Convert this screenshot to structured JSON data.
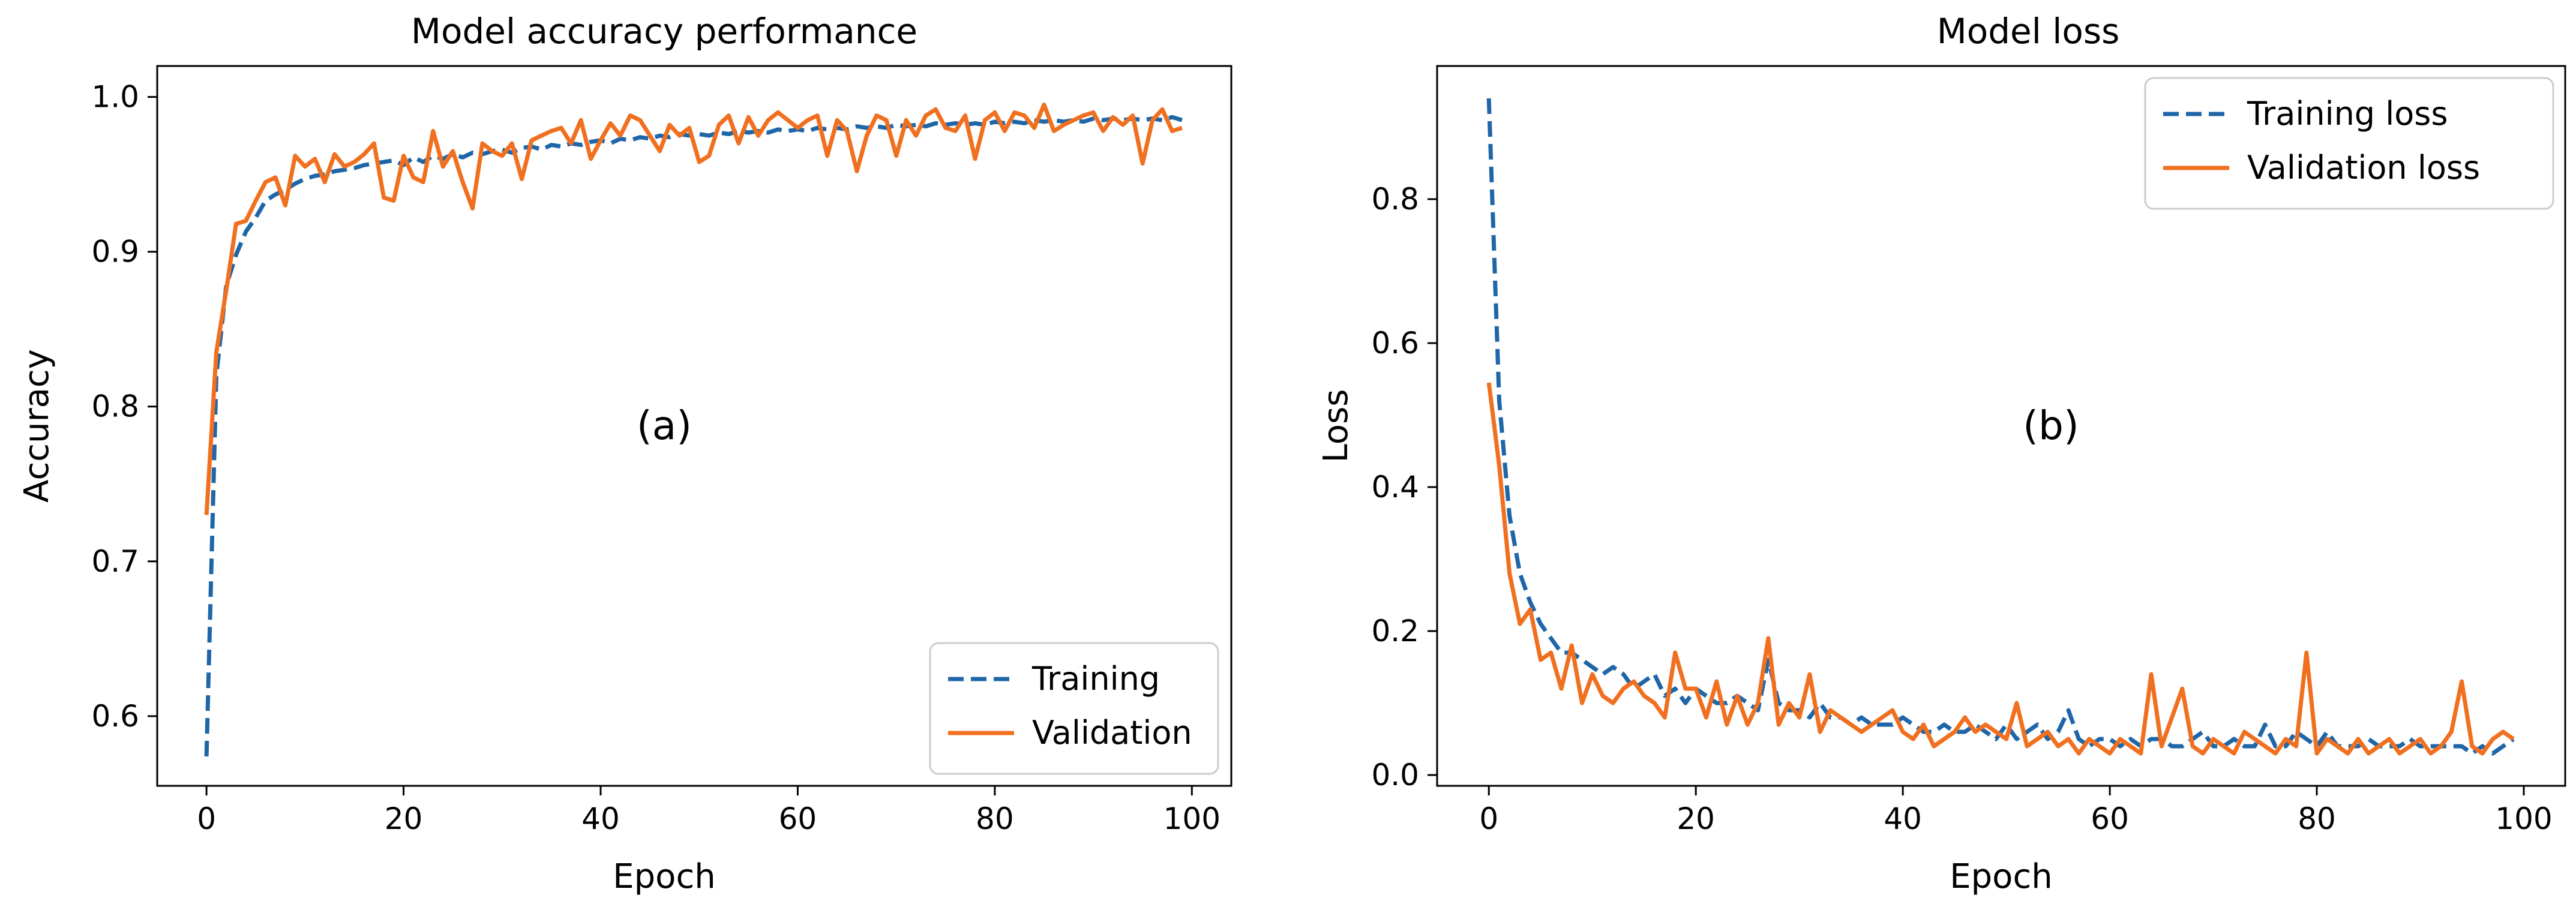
{
  "chart_data": [
    {
      "type": "line",
      "title": "Model accuracy performance",
      "xlabel": "Epoch",
      "ylabel": "Accuracy",
      "xlim": [
        -5,
        104
      ],
      "ylim": [
        0.555,
        1.02
      ],
      "xticks": [
        0,
        20,
        40,
        60,
        80,
        100
      ],
      "xtick_labels": [
        "0",
        "20",
        "40",
        "60",
        "80",
        "100"
      ],
      "yticks": [
        0.6,
        0.7,
        0.8,
        0.9,
        1.0
      ],
      "ytick_labels": [
        "0.6",
        "0.7",
        "0.8",
        "0.9",
        "1.0"
      ],
      "annotation": "(a)",
      "legend_position": "lower-right",
      "grid": false,
      "series": [
        {
          "name": "Training",
          "style": "dashed",
          "color": "#1f66a8",
          "x": [
            0,
            1,
            2,
            3,
            4,
            5,
            6,
            7,
            8,
            9,
            10,
            11,
            12,
            13,
            14,
            15,
            16,
            17,
            18,
            19,
            20,
            21,
            22,
            23,
            24,
            25,
            26,
            27,
            28,
            29,
            30,
            31,
            32,
            33,
            34,
            35,
            36,
            37,
            38,
            39,
            40,
            41,
            42,
            43,
            44,
            45,
            46,
            47,
            48,
            49,
            50,
            51,
            52,
            53,
            54,
            55,
            56,
            57,
            58,
            59,
            60,
            61,
            62,
            63,
            64,
            65,
            66,
            67,
            68,
            69,
            70,
            71,
            72,
            73,
            74,
            75,
            76,
            77,
            78,
            79,
            80,
            81,
            82,
            83,
            84,
            85,
            86,
            87,
            88,
            89,
            90,
            91,
            92,
            93,
            94,
            95,
            96,
            97,
            98,
            99
          ],
          "values": [
            0.574,
            0.82,
            0.878,
            0.898,
            0.913,
            0.922,
            0.933,
            0.937,
            0.94,
            0.944,
            0.947,
            0.949,
            0.95,
            0.952,
            0.953,
            0.954,
            0.956,
            0.957,
            0.958,
            0.959,
            0.956,
            0.961,
            0.958,
            0.962,
            0.96,
            0.963,
            0.961,
            0.964,
            0.963,
            0.965,
            0.966,
            0.964,
            0.967,
            0.968,
            0.966,
            0.969,
            0.968,
            0.97,
            0.969,
            0.971,
            0.972,
            0.97,
            0.973,
            0.972,
            0.974,
            0.973,
            0.975,
            0.974,
            0.976,
            0.975,
            0.976,
            0.975,
            0.977,
            0.976,
            0.978,
            0.977,
            0.978,
            0.977,
            0.979,
            0.978,
            0.979,
            0.978,
            0.98,
            0.979,
            0.98,
            0.979,
            0.981,
            0.98,
            0.981,
            0.98,
            0.982,
            0.981,
            0.982,
            0.981,
            0.983,
            0.982,
            0.983,
            0.982,
            0.983,
            0.982,
            0.984,
            0.983,
            0.984,
            0.983,
            0.985,
            0.984,
            0.985,
            0.984,
            0.985,
            0.984,
            0.986,
            0.985,
            0.986,
            0.985,
            0.986,
            0.985,
            0.986,
            0.985,
            0.987,
            0.985
          ]
        },
        {
          "name": "Validation",
          "style": "solid",
          "color": "#f07020",
          "x": [
            0,
            1,
            2,
            3,
            4,
            5,
            6,
            7,
            8,
            9,
            10,
            11,
            12,
            13,
            14,
            15,
            16,
            17,
            18,
            19,
            20,
            21,
            22,
            23,
            24,
            25,
            26,
            27,
            28,
            29,
            30,
            31,
            32,
            33,
            34,
            35,
            36,
            37,
            38,
            39,
            40,
            41,
            42,
            43,
            44,
            45,
            46,
            47,
            48,
            49,
            50,
            51,
            52,
            53,
            54,
            55,
            56,
            57,
            58,
            59,
            60,
            61,
            62,
            63,
            64,
            65,
            66,
            67,
            68,
            69,
            70,
            71,
            72,
            73,
            74,
            75,
            76,
            77,
            78,
            79,
            80,
            81,
            82,
            83,
            84,
            85,
            86,
            87,
            88,
            89,
            90,
            91,
            92,
            93,
            94,
            95,
            96,
            97,
            98,
            99
          ],
          "values": [
            0.73,
            0.835,
            0.875,
            0.918,
            0.92,
            0.933,
            0.945,
            0.948,
            0.93,
            0.962,
            0.955,
            0.96,
            0.945,
            0.963,
            0.955,
            0.958,
            0.963,
            0.97,
            0.935,
            0.933,
            0.962,
            0.948,
            0.945,
            0.978,
            0.955,
            0.965,
            0.945,
            0.928,
            0.97,
            0.965,
            0.962,
            0.97,
            0.947,
            0.972,
            0.975,
            0.978,
            0.98,
            0.97,
            0.985,
            0.96,
            0.972,
            0.983,
            0.975,
            0.988,
            0.985,
            0.975,
            0.965,
            0.982,
            0.975,
            0.98,
            0.958,
            0.962,
            0.982,
            0.988,
            0.97,
            0.987,
            0.975,
            0.985,
            0.99,
            0.985,
            0.98,
            0.985,
            0.988,
            0.962,
            0.985,
            0.978,
            0.952,
            0.975,
            0.988,
            0.985,
            0.962,
            0.985,
            0.975,
            0.988,
            0.992,
            0.98,
            0.978,
            0.988,
            0.96,
            0.985,
            0.99,
            0.978,
            0.99,
            0.988,
            0.98,
            0.995,
            0.978,
            0.982,
            0.985,
            0.988,
            0.99,
            0.978,
            0.987,
            0.982,
            0.988,
            0.957,
            0.985,
            0.992,
            0.978,
            0.98
          ]
        }
      ]
    },
    {
      "type": "line",
      "title": "Model loss",
      "xlabel": "Epoch",
      "ylabel": "Loss",
      "xlim": [
        -5,
        104
      ],
      "ylim": [
        -0.015,
        0.985
      ],
      "xticks": [
        0,
        20,
        40,
        60,
        80,
        100
      ],
      "xtick_labels": [
        "0",
        "20",
        "40",
        "60",
        "80",
        "100"
      ],
      "yticks": [
        0.0,
        0.2,
        0.4,
        0.6,
        0.8
      ],
      "ytick_labels": [
        "0.0",
        "0.2",
        "0.4",
        "0.6",
        "0.8"
      ],
      "annotation": "(b)",
      "legend_position": "upper-right",
      "grid": false,
      "series": [
        {
          "name": "Training loss",
          "style": "dashed",
          "color": "#1f66a8",
          "x": [
            0,
            1,
            2,
            3,
            4,
            5,
            6,
            7,
            8,
            9,
            10,
            11,
            12,
            13,
            14,
            15,
            16,
            17,
            18,
            19,
            20,
            21,
            22,
            23,
            24,
            25,
            26,
            27,
            28,
            29,
            30,
            31,
            32,
            33,
            34,
            35,
            36,
            37,
            38,
            39,
            40,
            41,
            42,
            43,
            44,
            45,
            46,
            47,
            48,
            49,
            50,
            51,
            52,
            53,
            54,
            55,
            56,
            57,
            58,
            59,
            60,
            61,
            62,
            63,
            64,
            65,
            66,
            67,
            68,
            69,
            70,
            71,
            72,
            73,
            74,
            75,
            76,
            77,
            78,
            79,
            80,
            81,
            82,
            83,
            84,
            85,
            86,
            87,
            88,
            89,
            90,
            91,
            92,
            93,
            94,
            95,
            96,
            97,
            98,
            99
          ],
          "values": [
            0.94,
            0.52,
            0.36,
            0.28,
            0.24,
            0.21,
            0.19,
            0.17,
            0.17,
            0.16,
            0.15,
            0.14,
            0.15,
            0.14,
            0.12,
            0.13,
            0.14,
            0.11,
            0.12,
            0.1,
            0.12,
            0.11,
            0.1,
            0.1,
            0.11,
            0.1,
            0.09,
            0.16,
            0.1,
            0.09,
            0.09,
            0.08,
            0.1,
            0.08,
            0.08,
            0.07,
            0.08,
            0.07,
            0.07,
            0.07,
            0.08,
            0.07,
            0.06,
            0.06,
            0.07,
            0.06,
            0.06,
            0.07,
            0.06,
            0.05,
            0.07,
            0.05,
            0.06,
            0.07,
            0.05,
            0.06,
            0.09,
            0.05,
            0.04,
            0.05,
            0.05,
            0.04,
            0.05,
            0.04,
            0.05,
            0.05,
            0.04,
            0.04,
            0.05,
            0.06,
            0.04,
            0.04,
            0.05,
            0.04,
            0.04,
            0.07,
            0.04,
            0.04,
            0.06,
            0.05,
            0.04,
            0.06,
            0.04,
            0.04,
            0.04,
            0.05,
            0.04,
            0.04,
            0.04,
            0.05,
            0.04,
            0.04,
            0.04,
            0.04,
            0.04,
            0.03,
            0.04,
            0.03,
            0.04,
            0.05
          ]
        },
        {
          "name": "Validation loss",
          "style": "solid",
          "color": "#f07020",
          "x": [
            0,
            1,
            2,
            3,
            4,
            5,
            6,
            7,
            8,
            9,
            10,
            11,
            12,
            13,
            14,
            15,
            16,
            17,
            18,
            19,
            20,
            21,
            22,
            23,
            24,
            25,
            26,
            27,
            28,
            29,
            30,
            31,
            32,
            33,
            34,
            35,
            36,
            37,
            38,
            39,
            40,
            41,
            42,
            43,
            44,
            45,
            46,
            47,
            48,
            49,
            50,
            51,
            52,
            53,
            54,
            55,
            56,
            57,
            58,
            59,
            60,
            61,
            62,
            63,
            64,
            65,
            66,
            67,
            68,
            69,
            70,
            71,
            72,
            73,
            74,
            75,
            76,
            77,
            78,
            79,
            80,
            81,
            82,
            83,
            84,
            85,
            86,
            87,
            88,
            89,
            90,
            91,
            92,
            93,
            94,
            95,
            96,
            97,
            98,
            99
          ],
          "values": [
            0.545,
            0.43,
            0.28,
            0.21,
            0.23,
            0.16,
            0.17,
            0.12,
            0.18,
            0.1,
            0.14,
            0.11,
            0.1,
            0.12,
            0.13,
            0.11,
            0.1,
            0.08,
            0.17,
            0.12,
            0.12,
            0.08,
            0.13,
            0.07,
            0.11,
            0.07,
            0.1,
            0.19,
            0.07,
            0.1,
            0.08,
            0.14,
            0.06,
            0.09,
            0.08,
            0.07,
            0.06,
            0.07,
            0.08,
            0.09,
            0.06,
            0.05,
            0.07,
            0.04,
            0.05,
            0.06,
            0.08,
            0.06,
            0.07,
            0.06,
            0.05,
            0.1,
            0.04,
            0.05,
            0.06,
            0.04,
            0.05,
            0.03,
            0.05,
            0.04,
            0.03,
            0.05,
            0.04,
            0.03,
            0.14,
            0.04,
            0.08,
            0.12,
            0.04,
            0.03,
            0.05,
            0.04,
            0.03,
            0.06,
            0.05,
            0.04,
            0.03,
            0.05,
            0.04,
            0.17,
            0.03,
            0.05,
            0.04,
            0.03,
            0.05,
            0.03,
            0.04,
            0.05,
            0.03,
            0.04,
            0.05,
            0.03,
            0.04,
            0.06,
            0.13,
            0.04,
            0.03,
            0.05,
            0.06,
            0.05
          ]
        }
      ]
    }
  ]
}
